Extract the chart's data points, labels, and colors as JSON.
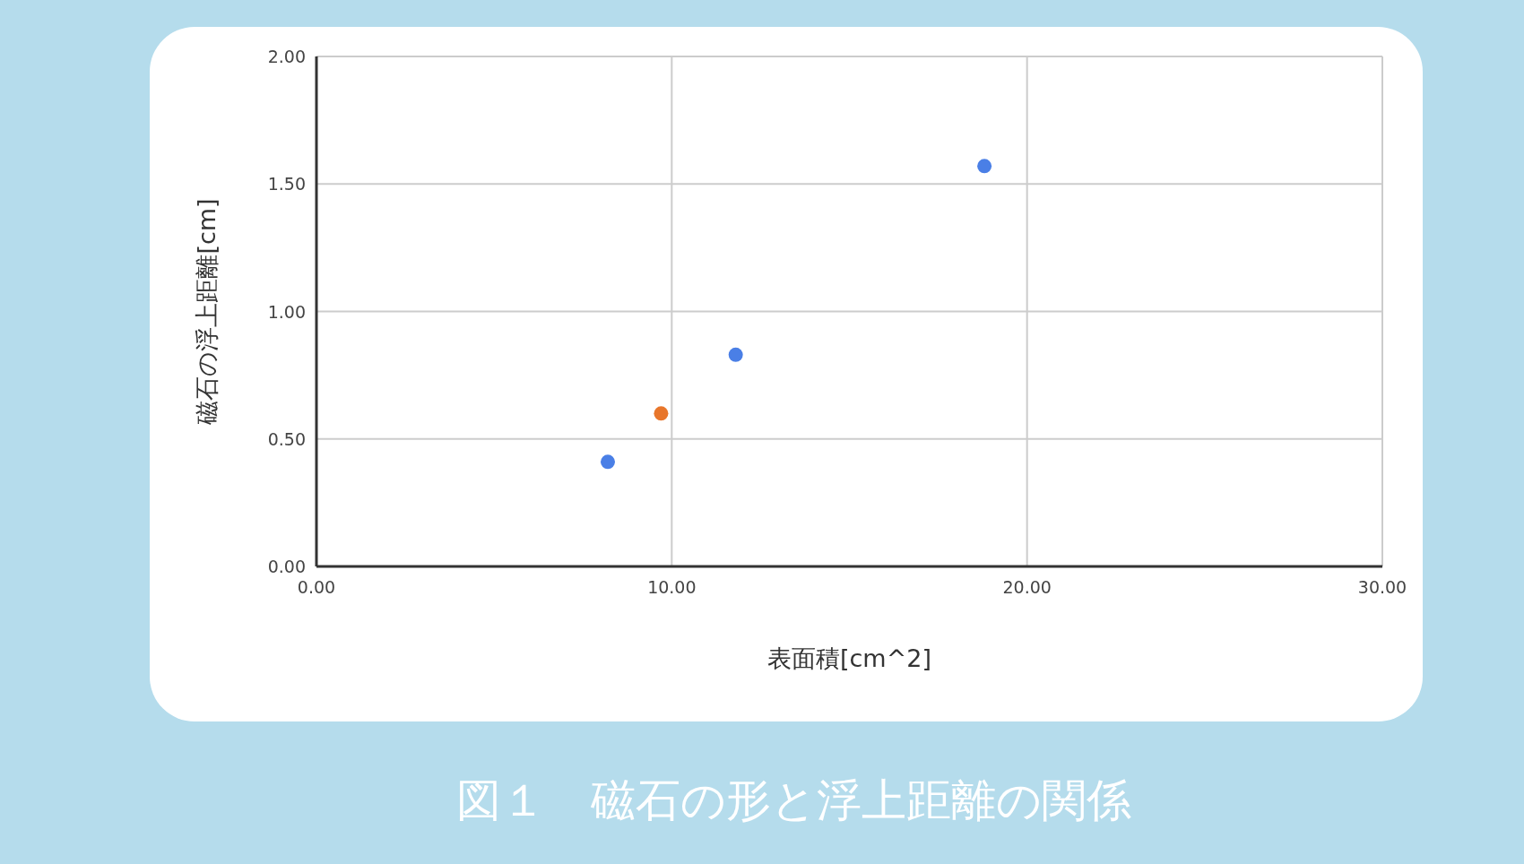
{
  "chart_data": {
    "type": "scatter",
    "title": "図１　磁石の形と浮上距離の関係",
    "xlabel": "表面積[cm^2]",
    "ylabel": "磁石の浮上距離[cm]",
    "series": [
      {
        "color": "#4a7fe6",
        "x": [
          8.2,
          11.8,
          18.8
        ],
        "values": [
          0.41,
          0.83,
          1.57
        ]
      },
      {
        "color": "#e8762b",
        "x": [
          9.7
        ],
        "values": [
          0.6
        ]
      }
    ],
    "xlim": [
      0,
      30
    ],
    "ylim": [
      0,
      2
    ],
    "xticks": [
      {
        "value": 0,
        "label": "0.00"
      },
      {
        "value": 10,
        "label": "10.00"
      },
      {
        "value": 20,
        "label": "20.00"
      },
      {
        "value": 30,
        "label": "30.00"
      }
    ],
    "yticks": [
      {
        "value": 0,
        "label": "0.00"
      },
      {
        "value": 0.5,
        "label": "0.50"
      },
      {
        "value": 1,
        "label": "1.00"
      },
      {
        "value": 1.5,
        "label": "1.50"
      },
      {
        "value": 2,
        "label": "2.00"
      }
    ],
    "grid": true,
    "marker": "circle"
  }
}
